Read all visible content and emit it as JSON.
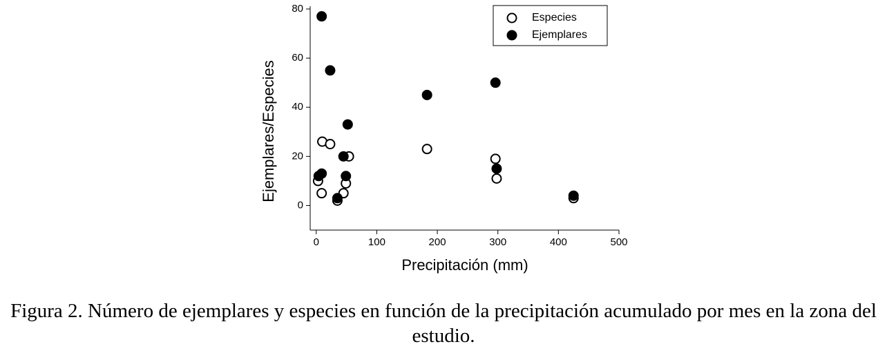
{
  "chart_data": {
    "type": "scatter",
    "xlabel": "Precipitación (mm)",
    "ylabel": "Ejemplares/Especies",
    "xlim": [
      -10,
      500
    ],
    "xticks": [
      0,
      100,
      200,
      300,
      400,
      500
    ],
    "ylim": [
      -10,
      80
    ],
    "yticks": [
      0,
      20,
      40,
      60,
      80
    ],
    "legend": "upper right",
    "series": [
      {
        "name": "Especies",
        "color": "#000000",
        "marker": "open",
        "x": [
          10,
          23,
          54,
          3,
          9,
          35,
          45,
          49,
          183,
          296,
          298,
          425
        ],
        "values": [
          26,
          25,
          20,
          10,
          5,
          2,
          5,
          9,
          23,
          19,
          11,
          3
        ]
      },
      {
        "name": "Ejemplares",
        "color": "#000000",
        "marker": "filled",
        "x": [
          9,
          23,
          52,
          45,
          49,
          35,
          4,
          9,
          183,
          296,
          298,
          425
        ],
        "values": [
          77,
          55,
          33,
          20,
          12,
          3,
          12,
          13,
          45,
          50,
          15,
          4
        ]
      }
    ]
  },
  "caption": "Figura 2. Número de ejemplares y especies en función de la precipitación acumulado por mes en la zona del estudio."
}
